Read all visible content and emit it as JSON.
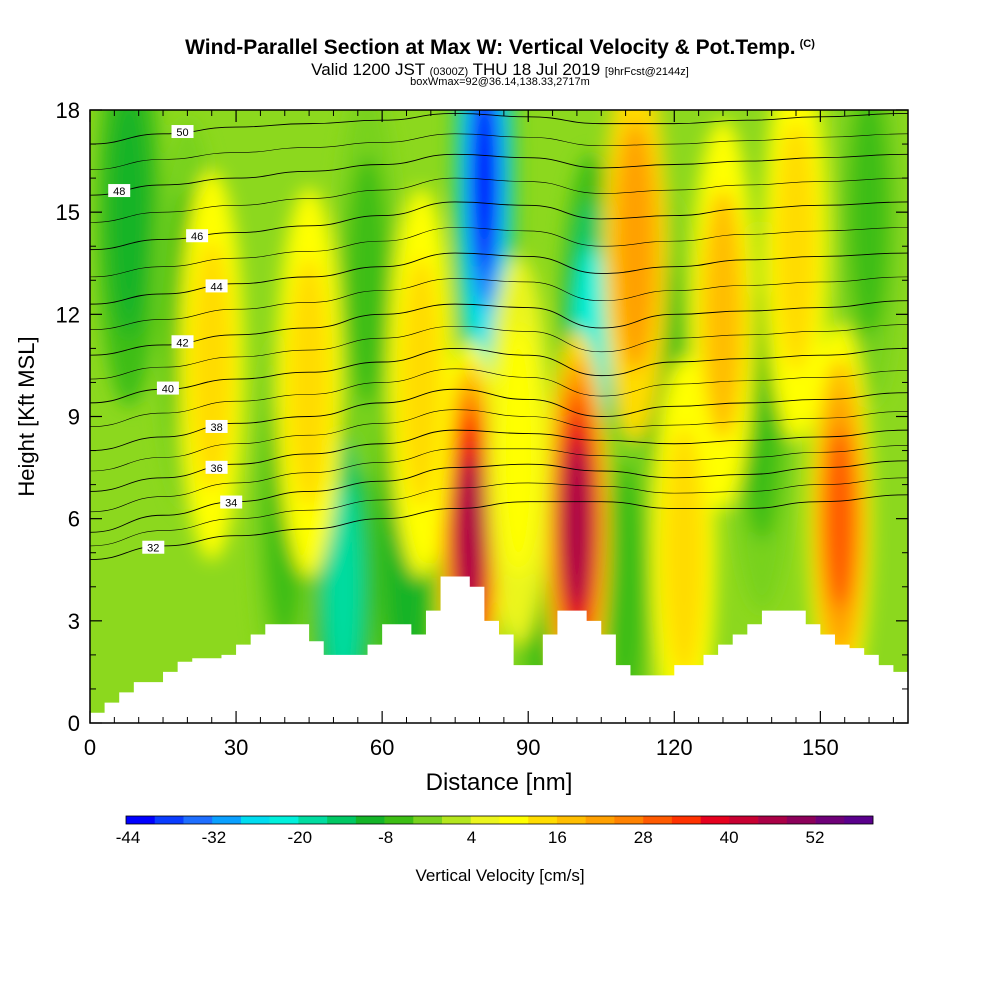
{
  "header": {
    "title": "Wind-Parallel Section at Max W: Vertical Velocity & Pot.Temp.",
    "copyright_mark": "(C)",
    "valid_prefix": "Valid 1200 JST",
    "valid_utc": "(0300Z)",
    "valid_date": "THU 18 Jul 2019",
    "forecast_info": "[9hrFcst@2144z]",
    "box_info": "boxWmax=92@36.14,138.33,2717m"
  },
  "chart_data": {
    "type": "heatmap",
    "xlabel": "Distance [nm]",
    "ylabel": "Height [Kft MSL]",
    "xlim": [
      0,
      168
    ],
    "ylim": [
      0,
      18
    ],
    "xticks": [
      0,
      30,
      60,
      90,
      120,
      150
    ],
    "yticks": [
      0,
      3,
      6,
      9,
      12,
      15,
      18
    ],
    "grid": false,
    "colorbar": {
      "label": "Vertical Velocity [cm/s]",
      "tick_labels": [
        "-44",
        "-32",
        "-20",
        "-8",
        "4",
        "16",
        "28",
        "40",
        "52"
      ],
      "colors": [
        "#0000ff",
        "#0a3cff",
        "#1e6eff",
        "#0aa0ff",
        "#00dcf0",
        "#00f0dc",
        "#00dca0",
        "#00c864",
        "#14b428",
        "#3cbe14",
        "#78d21e",
        "#b4e61e",
        "#ebf51e",
        "#ffff00",
        "#ffdc00",
        "#ffbe00",
        "#ffa000",
        "#ff8200",
        "#ff5a00",
        "#ff3200",
        "#e6001e",
        "#c80032",
        "#aa0046",
        "#8c005a",
        "#6e0078",
        "#5a008c"
      ]
    },
    "updrafts": [
      {
        "distance_nm": 78,
        "height_kft": 5.5,
        "w_cms": 44
      },
      {
        "distance_nm": 100,
        "height_kft": 5.8,
        "w_cms": 42
      },
      {
        "distance_nm": 154,
        "height_kft": 6.0,
        "w_cms": 28
      },
      {
        "distance_nm": 25,
        "height_kft": 10.5,
        "w_cms": 14
      },
      {
        "distance_nm": 45,
        "height_kft": 10.0,
        "w_cms": 14
      },
      {
        "distance_nm": 68,
        "height_kft": 10.0,
        "w_cms": 14
      },
      {
        "distance_nm": 112,
        "height_kft": 14.0,
        "w_cms": 18
      },
      {
        "distance_nm": 130,
        "height_kft": 12.0,
        "w_cms": 16
      },
      {
        "distance_nm": 145,
        "height_kft": 14.0,
        "w_cms": 14
      },
      {
        "distance_nm": 122,
        "height_kft": 5.0,
        "w_cms": 10
      },
      {
        "distance_nm": 88,
        "height_kft": 8.0,
        "w_cms": 8
      }
    ],
    "downdrafts": [
      {
        "distance_nm": 81,
        "height_kft": 16.0,
        "w_cms": -44
      },
      {
        "distance_nm": 103,
        "height_kft": 11.0,
        "w_cms": -24
      },
      {
        "distance_nm": 52,
        "height_kft": 4.0,
        "w_cms": -22
      },
      {
        "distance_nm": 8,
        "height_kft": 15.0,
        "w_cms": -14
      },
      {
        "distance_nm": 20,
        "height_kft": 12.0,
        "w_cms": -10
      },
      {
        "distance_nm": 57,
        "height_kft": 13.0,
        "w_cms": -10
      },
      {
        "distance_nm": 118,
        "height_kft": 10.0,
        "w_cms": -10
      },
      {
        "distance_nm": 138,
        "height_kft": 9.0,
        "w_cms": -8
      },
      {
        "distance_nm": 160,
        "height_kft": 15.0,
        "w_cms": -10
      },
      {
        "distance_nm": 40,
        "height_kft": 6.0,
        "w_cms": -8
      },
      {
        "distance_nm": 65,
        "height_kft": 5.0,
        "w_cms": -12
      },
      {
        "distance_nm": 93,
        "height_kft": 4.0,
        "w_cms": -10
      },
      {
        "distance_nm": 110,
        "height_kft": 4.0,
        "w_cms": -10
      }
    ],
    "terrain_kft": [
      [
        0,
        0.3
      ],
      [
        3,
        0.6
      ],
      [
        6,
        0.9
      ],
      [
        9,
        1.2
      ],
      [
        15,
        1.5
      ],
      [
        18,
        1.8
      ],
      [
        21,
        1.9
      ],
      [
        27,
        2.0
      ],
      [
        30,
        2.3
      ],
      [
        33,
        2.6
      ],
      [
        36,
        2.9
      ],
      [
        42,
        2.9
      ],
      [
        45,
        2.4
      ],
      [
        48,
        2.0
      ],
      [
        54,
        2.0
      ],
      [
        57,
        2.3
      ],
      [
        60,
        2.9
      ],
      [
        63,
        2.9
      ],
      [
        66,
        2.6
      ],
      [
        69,
        3.3
      ],
      [
        72,
        4.3
      ],
      [
        75,
        4.3
      ],
      [
        78,
        4.0
      ],
      [
        81,
        3.0
      ],
      [
        84,
        2.6
      ],
      [
        87,
        1.7
      ],
      [
        90,
        1.7
      ],
      [
        93,
        2.6
      ],
      [
        96,
        3.3
      ],
      [
        99,
        3.3
      ],
      [
        102,
        3.0
      ],
      [
        105,
        2.6
      ],
      [
        108,
        1.7
      ],
      [
        111,
        1.4
      ],
      [
        117,
        1.4
      ],
      [
        120,
        1.7
      ],
      [
        126,
        2.0
      ],
      [
        129,
        2.3
      ],
      [
        132,
        2.6
      ],
      [
        135,
        2.9
      ],
      [
        138,
        3.3
      ],
      [
        144,
        3.3
      ],
      [
        147,
        2.9
      ],
      [
        150,
        2.6
      ],
      [
        153,
        2.3
      ],
      [
        156,
        2.2
      ],
      [
        159,
        2.0
      ],
      [
        162,
        1.7
      ],
      [
        165,
        1.5
      ],
      [
        168,
        1.3
      ]
    ],
    "theta_contours": [
      {
        "label": "32",
        "pts": [
          [
            0,
            4.8
          ],
          [
            15,
            5.2
          ],
          [
            30,
            5.5
          ],
          [
            45,
            5.7
          ],
          [
            60,
            6.0
          ],
          [
            75,
            6.3
          ],
          [
            90,
            6.5
          ],
          [
            105,
            6.5
          ],
          [
            120,
            6.3
          ],
          [
            135,
            6.3
          ],
          [
            150,
            6.5
          ],
          [
            168,
            6.7
          ]
        ]
      },
      {
        "label": "34",
        "pts": [
          [
            0,
            5.6
          ],
          [
            15,
            6.1
          ],
          [
            30,
            6.5
          ],
          [
            45,
            6.8
          ],
          [
            60,
            7.1
          ],
          [
            75,
            7.5
          ],
          [
            90,
            7.6
          ],
          [
            105,
            7.4
          ],
          [
            120,
            7.2
          ],
          [
            135,
            7.3
          ],
          [
            150,
            7.5
          ],
          [
            168,
            7.7
          ]
        ]
      },
      {
        "label": "36",
        "pts": [
          [
            0,
            6.8
          ],
          [
            15,
            7.2
          ],
          [
            30,
            7.6
          ],
          [
            45,
            7.9
          ],
          [
            60,
            8.2
          ],
          [
            75,
            8.6
          ],
          [
            90,
            8.5
          ],
          [
            105,
            8.3
          ],
          [
            120,
            8.2
          ],
          [
            135,
            8.3
          ],
          [
            150,
            8.4
          ],
          [
            168,
            8.6
          ]
        ]
      },
      {
        "label": "38",
        "pts": [
          [
            0,
            8.0
          ],
          [
            15,
            8.4
          ],
          [
            30,
            8.8
          ],
          [
            45,
            9.0
          ],
          [
            60,
            9.4
          ],
          [
            75,
            9.8
          ],
          [
            90,
            9.5
          ],
          [
            105,
            9.0
          ],
          [
            120,
            9.3
          ],
          [
            135,
            9.4
          ],
          [
            150,
            9.5
          ],
          [
            168,
            9.7
          ]
        ]
      },
      {
        "label": "40",
        "pts": [
          [
            0,
            9.4
          ],
          [
            15,
            9.8
          ],
          [
            30,
            10.1
          ],
          [
            45,
            10.3
          ],
          [
            60,
            10.6
          ],
          [
            75,
            11.0
          ],
          [
            90,
            10.8
          ],
          [
            105,
            10.2
          ],
          [
            120,
            10.6
          ],
          [
            135,
            10.7
          ],
          [
            150,
            10.8
          ],
          [
            168,
            11.0
          ]
        ]
      },
      {
        "label": "42",
        "pts": [
          [
            0,
            10.8
          ],
          [
            15,
            11.1
          ],
          [
            30,
            11.4
          ],
          [
            45,
            11.6
          ],
          [
            60,
            12.0
          ],
          [
            75,
            12.3
          ],
          [
            90,
            12.2
          ],
          [
            105,
            11.6
          ],
          [
            120,
            12.0
          ],
          [
            135,
            12.1
          ],
          [
            150,
            12.2
          ],
          [
            168,
            12.4
          ]
        ]
      },
      {
        "label": "44",
        "pts": [
          [
            0,
            12.3
          ],
          [
            15,
            12.6
          ],
          [
            30,
            12.9
          ],
          [
            45,
            13.1
          ],
          [
            60,
            13.4
          ],
          [
            75,
            13.8
          ],
          [
            90,
            13.7
          ],
          [
            105,
            13.2
          ],
          [
            120,
            13.4
          ],
          [
            135,
            13.6
          ],
          [
            150,
            13.7
          ],
          [
            168,
            13.8
          ]
        ]
      },
      {
        "label": "46",
        "pts": [
          [
            0,
            13.9
          ],
          [
            15,
            14.2
          ],
          [
            30,
            14.4
          ],
          [
            45,
            14.6
          ],
          [
            60,
            14.9
          ],
          [
            75,
            15.3
          ],
          [
            90,
            15.2
          ],
          [
            105,
            14.8
          ],
          [
            120,
            14.9
          ],
          [
            135,
            15.1
          ],
          [
            150,
            15.2
          ],
          [
            168,
            15.3
          ]
        ]
      },
      {
        "label": "48",
        "pts": [
          [
            0,
            15.5
          ],
          [
            15,
            15.8
          ],
          [
            30,
            16.0
          ],
          [
            45,
            16.2
          ],
          [
            60,
            16.4
          ],
          [
            75,
            16.7
          ],
          [
            90,
            16.6
          ],
          [
            105,
            16.3
          ],
          [
            120,
            16.4
          ],
          [
            135,
            16.5
          ],
          [
            150,
            16.6
          ],
          [
            168,
            16.7
          ]
        ]
      },
      {
        "label": "50",
        "pts": [
          [
            0,
            17.0
          ],
          [
            15,
            17.3
          ],
          [
            30,
            17.5
          ],
          [
            45,
            17.6
          ],
          [
            60,
            17.7
          ],
          [
            75,
            17.9
          ],
          [
            90,
            17.8
          ],
          [
            105,
            17.6
          ],
          [
            120,
            17.6
          ],
          [
            135,
            17.7
          ],
          [
            150,
            17.8
          ],
          [
            168,
            17.9
          ]
        ]
      }
    ],
    "contour_label_positions": [
      {
        "label": "32",
        "x": 13
      },
      {
        "label": "34",
        "x": 29
      },
      {
        "label": "36",
        "x": 26
      },
      {
        "label": "38",
        "x": 26
      },
      {
        "label": "40",
        "x": 16
      },
      {
        "label": "42",
        "x": 19
      },
      {
        "label": "44",
        "x": 26
      },
      {
        "label": "46",
        "x": 22
      },
      {
        "label": "48",
        "x": 6
      },
      {
        "label": "50",
        "x": 19
      }
    ]
  }
}
